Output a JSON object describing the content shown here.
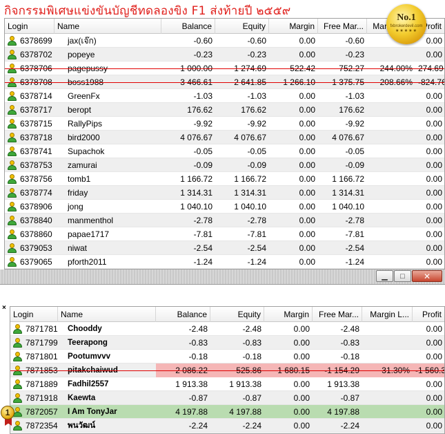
{
  "title": "กิจกรรมพิเศษแข่งขันบัญชีทดลองขิง F1    ส่งท้ายปี ๒๕๕๙",
  "badge": {
    "main": "No.1",
    "sub": "fxbrokerdevil.com",
    "stars": "★★★★★"
  },
  "panel1": {
    "headers": [
      "Login",
      "Name",
      "Balance",
      "Equity",
      "Margin",
      "Free Mar...",
      "Margin L...",
      "Profit"
    ],
    "rows": [
      {
        "login": "6378699",
        "name": "jax(เจ๊ก)",
        "balance": "-0.60",
        "equity": "-0.60",
        "margin": "0.00",
        "free": "-0.60",
        "mlevel": "",
        "profit": "0.00"
      },
      {
        "login": "6378702",
        "name": "popeye",
        "balance": "-0.23",
        "equity": "-0.23",
        "margin": "0.00",
        "free": "-0.23",
        "mlevel": "",
        "profit": "0.00"
      },
      {
        "login": "6378706",
        "name": "pagepussy",
        "balance": "1 000.00",
        "equity": "1 274.69",
        "margin": "522.42",
        "free": "752.27",
        "mlevel": "244.00%",
        "profit": "274.69"
      },
      {
        "login": "6378708",
        "name": "boss1988",
        "balance": "3 466.61",
        "equity": "2 641.85",
        "margin": "1 266.10",
        "free": "1 375.75",
        "mlevel": "208.66%",
        "profit": "-824.76"
      },
      {
        "login": "6378714",
        "name": "GreenFx",
        "balance": "-1.03",
        "equity": "-1.03",
        "margin": "0.00",
        "free": "-1.03",
        "mlevel": "",
        "profit": "0.00"
      },
      {
        "login": "6378717",
        "name": "beropt",
        "balance": "176.62",
        "equity": "176.62",
        "margin": "0.00",
        "free": "176.62",
        "mlevel": "",
        "profit": "0.00"
      },
      {
        "login": "6378715",
        "name": "RallyPips",
        "balance": "-9.92",
        "equity": "-9.92",
        "margin": "0.00",
        "free": "-9.92",
        "mlevel": "",
        "profit": "0.00"
      },
      {
        "login": "6378718",
        "name": "bird2000",
        "balance": "4 076.67",
        "equity": "4 076.67",
        "margin": "0.00",
        "free": "4 076.67",
        "mlevel": "",
        "profit": "0.00"
      },
      {
        "login": "6378741",
        "name": "Supachok",
        "balance": "-0.05",
        "equity": "-0.05",
        "margin": "0.00",
        "free": "-0.05",
        "mlevel": "",
        "profit": "0.00"
      },
      {
        "login": "6378753",
        "name": "zamurai",
        "balance": "-0.09",
        "equity": "-0.09",
        "margin": "0.00",
        "free": "-0.09",
        "mlevel": "",
        "profit": "0.00"
      },
      {
        "login": "6378756",
        "name": "tomb1",
        "balance": "1 166.72",
        "equity": "1 166.72",
        "margin": "0.00",
        "free": "1 166.72",
        "mlevel": "",
        "profit": "0.00"
      },
      {
        "login": "6378774",
        "name": "friday",
        "balance": "1 314.31",
        "equity": "1 314.31",
        "margin": "0.00",
        "free": "1 314.31",
        "mlevel": "",
        "profit": "0.00"
      },
      {
        "login": "6378906",
        "name": "jong",
        "balance": "1 040.10",
        "equity": "1 040.10",
        "margin": "0.00",
        "free": "1 040.10",
        "mlevel": "",
        "profit": "0.00"
      },
      {
        "login": "6378840",
        "name": "manmenthol",
        "balance": "-2.78",
        "equity": "-2.78",
        "margin": "0.00",
        "free": "-2.78",
        "mlevel": "",
        "profit": "0.00"
      },
      {
        "login": "6378860",
        "name": "papae1717",
        "balance": "-7.81",
        "equity": "-7.81",
        "margin": "0.00",
        "free": "-7.81",
        "mlevel": "",
        "profit": "0.00"
      },
      {
        "login": "6379053",
        "name": "niwat",
        "balance": "-2.54",
        "equity": "-2.54",
        "margin": "0.00",
        "free": "-2.54",
        "mlevel": "",
        "profit": "0.00"
      },
      {
        "login": "6379065",
        "name": "pforth2011",
        "balance": "-1.24",
        "equity": "-1.24",
        "margin": "0.00",
        "free": "-1.24",
        "mlevel": "",
        "profit": "0.00"
      }
    ]
  },
  "window_buttons": {
    "minimize": "▁",
    "maximize": "□",
    "close": "✕"
  },
  "close_x": "×",
  "panel2": {
    "headers": [
      "Login",
      "Name",
      "Balance",
      "Equity",
      "Margin",
      "Free Mar...",
      "Margin L...",
      "Profit"
    ],
    "rows": [
      {
        "login": "7871781",
        "name": "Chooddy",
        "balance": "-2.48",
        "equity": "-2.48",
        "margin": "0.00",
        "free": "-2.48",
        "mlevel": "",
        "profit": "0.00"
      },
      {
        "login": "7871799",
        "name": "Teerapong",
        "balance": "-0.83",
        "equity": "-0.83",
        "margin": "0.00",
        "free": "-0.83",
        "mlevel": "",
        "profit": "0.00"
      },
      {
        "login": "7871801",
        "name": "Pootumvvv",
        "balance": "-0.18",
        "equity": "-0.18",
        "margin": "0.00",
        "free": "-0.18",
        "mlevel": "",
        "profit": "0.00"
      },
      {
        "login": "7871853",
        "name": "pitakchaiwud",
        "balance": "2 086.22",
        "equity": "525.86",
        "margin": "1 680.15",
        "free": "-1 154.29",
        "mlevel": "31.30%",
        "profit": "-1 560.36"
      },
      {
        "login": "7871889",
        "name": "Fadhil2557",
        "balance": "1 913.38",
        "equity": "1 913.38",
        "margin": "0.00",
        "free": "1 913.38",
        "mlevel": "",
        "profit": "0.00"
      },
      {
        "login": "7871918",
        "name": "Kaewta",
        "balance": "-0.87",
        "equity": "-0.87",
        "margin": "0.00",
        "free": "-0.87",
        "mlevel": "",
        "profit": "0.00"
      },
      {
        "login": "7872057",
        "name": "I Am TonyJar",
        "balance": "4 197.88",
        "equity": "4 197.88",
        "margin": "0.00",
        "free": "4 197.88",
        "mlevel": "",
        "profit": "0.00"
      },
      {
        "login": "7872354",
        "name": "พนวัฒน์",
        "balance": "-2.24",
        "equity": "-2.24",
        "margin": "0.00",
        "free": "-2.24",
        "mlevel": "",
        "profit": "0.00"
      }
    ]
  },
  "medal": "1",
  "colors": {
    "title": "#e0201c",
    "strike": "#e00000",
    "pink": "#f5b6b6",
    "green": "#b9dcb0"
  }
}
